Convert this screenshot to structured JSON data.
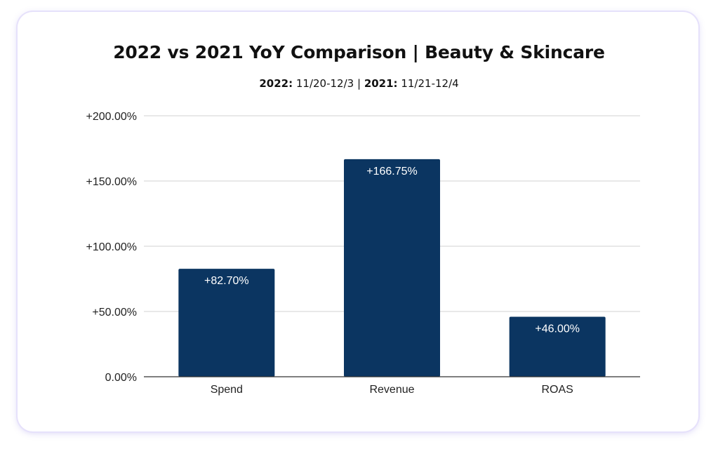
{
  "chart_data": {
    "type": "bar",
    "title": "2022 vs 2021 YoY Comparison | Beauty & Skincare",
    "subtitle": {
      "label_2022": "2022:",
      "range_2022": "11/20-12/3",
      "separator": "|",
      "label_2021": "2021:",
      "range_2021": "11/21-12/4"
    },
    "categories": [
      "Spend",
      "Revenue",
      "ROAS"
    ],
    "values": [
      82.7,
      166.75,
      46.0
    ],
    "data_labels": [
      "+82.70%",
      "+166.75%",
      "+46.00%"
    ],
    "ylim": [
      0,
      200
    ],
    "yticks": [
      0,
      50,
      100,
      150,
      200
    ],
    "ytick_labels": [
      "0.00%",
      "+50.00%",
      "+100.00%",
      "+150.00%",
      "+200.00%"
    ],
    "xlabel": "",
    "ylabel": "",
    "grid": true,
    "legend": "none",
    "colors": {
      "bar": "#0b3561",
      "grid": "#d0d0d0",
      "axis": "#333333",
      "card_border": "#e6e1fb"
    }
  }
}
